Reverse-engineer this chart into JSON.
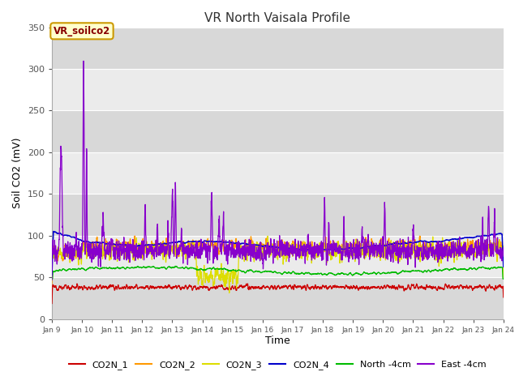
{
  "title": "VR North Vaisala Profile",
  "xlabel": "Time",
  "ylabel": "Soil CO2 (mV)",
  "ylim": [
    0,
    350
  ],
  "yticks": [
    0,
    50,
    100,
    150,
    200,
    250,
    300,
    350
  ],
  "xstart": 9,
  "xend": 24,
  "xtick_labels": [
    "Jan 9",
    "Jan 10",
    "Jan 11",
    "Jan 12",
    "Jan 13",
    "Jan 14",
    "Jan 15",
    "Jan 16",
    "Jan 17",
    "Jan 18",
    "Jan 19",
    "Jan 20",
    "Jan 21",
    "Jan 22",
    "Jan 23",
    "Jan 24"
  ],
  "series_colors": {
    "CO2N_1": "#cc0000",
    "CO2N_2": "#ff9900",
    "CO2N_3": "#dddd00",
    "CO2N_4": "#0000cc",
    "North_4cm": "#00bb00",
    "East_4cm": "#8800cc"
  },
  "legend_labels": [
    "CO2N_1",
    "CO2N_2",
    "CO2N_3",
    "CO2N_4",
    "North -4cm",
    "East -4cm"
  ],
  "annotation_text": "VR_soilco2",
  "annotation_color": "#880000",
  "annotation_bg": "#ffffcc",
  "annotation_border": "#cc9900",
  "bg_color": "#ffffff",
  "plot_bg": "#e8e8e8",
  "grid_color": "#ffffff",
  "band_color": "#e0e0e0"
}
